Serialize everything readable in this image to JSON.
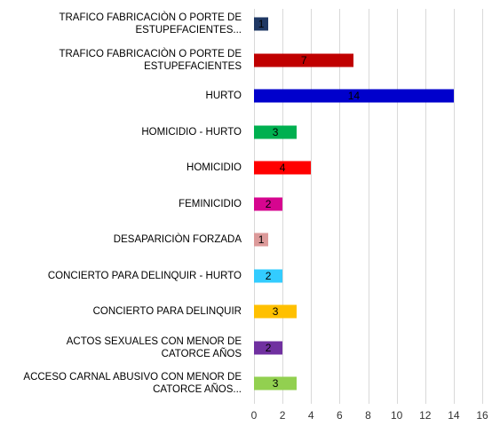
{
  "chart_data": {
    "type": "barh",
    "categories": [
      "TRAFICO FABRICACIÒN O PORTE DE ESTUPEFACIENTES...",
      "TRAFICO FABRICACIÒN O PORTE DE ESTUPEFACIENTES",
      "HURTO",
      "HOMICIDIO - HURTO",
      "HOMICIDIO",
      "FEMINICIDIO",
      "DESAPARICIÒN FORZADA",
      "CONCIERTO PARA DELINQUIR - HURTO",
      "CONCIERTO PARA DELINQUIR",
      "ACTOS SEXUALES CON MENOR DE CATORCE AÑOS",
      "ACCESO CARNAL ABUSIVO CON MENOR DE CATORCE AÑOS..."
    ],
    "values": [
      1,
      7,
      14,
      3,
      4,
      2,
      1,
      2,
      3,
      2,
      3
    ],
    "colors": [
      "#1f3864",
      "#c00000",
      "#0000cc",
      "#00b050",
      "#ff0000",
      "#d6058f",
      "#dc9a9a",
      "#33ccff",
      "#ffc000",
      "#7030a0",
      "#92d050"
    ],
    "xlim": [
      0,
      16
    ],
    "xticks": [
      0,
      2,
      4,
      6,
      8,
      10,
      12,
      14,
      16
    ],
    "grid": true
  }
}
